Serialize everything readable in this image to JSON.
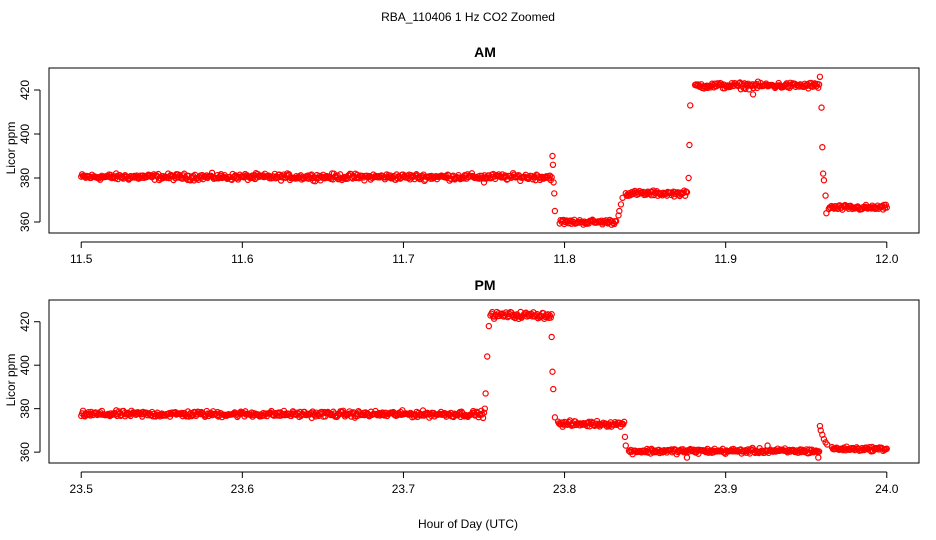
{
  "figure": {
    "title": "RBA_110406  1 Hz CO2 Zoomed",
    "xlabel": "Hour of Day (UTC)"
  },
  "colors": {
    "points": "#ff0000",
    "axis": "#000000",
    "background": "#ffffff"
  },
  "chart_data": [
    {
      "type": "scatter",
      "title": "AM",
      "xlabel": "Hour of Day (UTC)",
      "ylabel": "Licor ppm",
      "xlim": [
        11.5,
        12.0
      ],
      "ylim": [
        355,
        430
      ],
      "xticks": [
        "11.5",
        "11.6",
        "11.7",
        "11.8",
        "11.9",
        "12.0"
      ],
      "yticks": [
        "360",
        "380",
        "400",
        "420"
      ],
      "grid": false,
      "marker": "open-circle",
      "series": [
        {
          "segments": [
            {
              "x_start": 11.5,
              "x_end": 11.792,
              "y": 380.5,
              "noise": 1.2
            },
            {
              "x_start": 11.797,
              "x_end": 11.832,
              "y": 360,
              "noise": 1.0
            },
            {
              "x_start": 11.838,
              "x_end": 11.876,
              "y": 373,
              "noise": 1.0
            },
            {
              "x_start": 11.881,
              "x_end": 11.958,
              "y": 422,
              "noise": 1.2
            },
            {
              "x_start": 11.964,
              "x_end": 12.0,
              "y": 366.5,
              "noise": 1.0
            }
          ],
          "transitions": [
            {
              "x": 11.7925,
              "y": 390
            },
            {
              "x": 11.7928,
              "y": 386
            },
            {
              "x": 11.7932,
              "y": 378
            },
            {
              "x": 11.7936,
              "y": 373
            },
            {
              "x": 11.794,
              "y": 365
            },
            {
              "x": 11.8335,
              "y": 363
            },
            {
              "x": 11.834,
              "y": 365
            },
            {
              "x": 11.835,
              "y": 368
            },
            {
              "x": 11.836,
              "y": 371
            },
            {
              "x": 11.877,
              "y": 380
            },
            {
              "x": 11.8775,
              "y": 395
            },
            {
              "x": 11.878,
              "y": 413
            },
            {
              "x": 11.9585,
              "y": 426
            },
            {
              "x": 11.9595,
              "y": 412
            },
            {
              "x": 11.96,
              "y": 394
            },
            {
              "x": 11.9605,
              "y": 382
            },
            {
              "x": 11.961,
              "y": 379
            },
            {
              "x": 11.962,
              "y": 372
            },
            {
              "x": 11.9625,
              "y": 364
            },
            {
              "x": 11.917,
              "y": 418
            },
            {
              "x": 11.75,
              "y": 378
            }
          ]
        }
      ]
    },
    {
      "type": "scatter",
      "title": "PM",
      "xlabel": "Hour of Day (UTC)",
      "ylabel": "Licor ppm",
      "xlim": [
        23.5,
        24.0
      ],
      "ylim": [
        355,
        430
      ],
      "xticks": [
        "23.5",
        "23.6",
        "23.7",
        "23.8",
        "23.9",
        "24.0"
      ],
      "yticks": [
        "360",
        "380",
        "400",
        "420"
      ],
      "grid": false,
      "marker": "open-circle",
      "series": [
        {
          "segments": [
            {
              "x_start": 23.5,
              "x_end": 23.75,
              "y": 377.5,
              "noise": 1.2
            },
            {
              "x_start": 23.754,
              "x_end": 23.792,
              "y": 423,
              "noise": 1.3
            },
            {
              "x_start": 23.796,
              "x_end": 23.837,
              "y": 373,
              "noise": 1.1
            },
            {
              "x_start": 23.84,
              "x_end": 23.958,
              "y": 360.5,
              "noise": 1.0
            },
            {
              "x_start": 23.966,
              "x_end": 24.0,
              "y": 361.5,
              "noise": 0.8
            }
          ],
          "transitions": [
            {
              "x": 23.7505,
              "y": 380
            },
            {
              "x": 23.751,
              "y": 387
            },
            {
              "x": 23.752,
              "y": 404
            },
            {
              "x": 23.753,
              "y": 418
            },
            {
              "x": 23.792,
              "y": 413
            },
            {
              "x": 23.7925,
              "y": 397
            },
            {
              "x": 23.793,
              "y": 389
            },
            {
              "x": 23.794,
              "y": 376
            },
            {
              "x": 23.8375,
              "y": 367
            },
            {
              "x": 23.838,
              "y": 363
            },
            {
              "x": 23.9585,
              "y": 372
            },
            {
              "x": 23.959,
              "y": 370
            },
            {
              "x": 23.96,
              "y": 368
            },
            {
              "x": 23.961,
              "y": 366
            },
            {
              "x": 23.962,
              "y": 364.5
            },
            {
              "x": 23.963,
              "y": 363.5
            },
            {
              "x": 23.9575,
              "y": 357.5
            },
            {
              "x": 23.926,
              "y": 363
            },
            {
              "x": 23.876,
              "y": 357.5
            }
          ]
        }
      ]
    }
  ]
}
